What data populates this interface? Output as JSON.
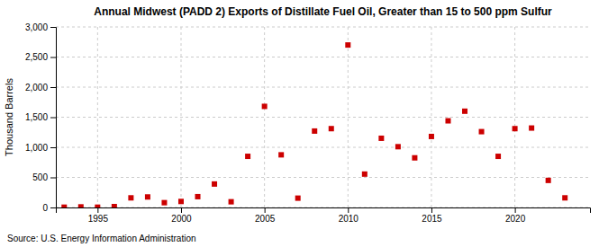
{
  "chart_data": {
    "type": "scatter",
    "title": "Annual Midwest (PADD 2) Exports of Distillate Fuel Oil, Greater than 15 to 500 ppm Sulfur",
    "ylabel": "Thousand Barrels",
    "source": "Source: U.S. Energy Information Administration",
    "x": [
      1993,
      1994,
      1995,
      1996,
      1997,
      1998,
      1999,
      2000,
      2001,
      2002,
      2003,
      2004,
      2005,
      2006,
      2007,
      2008,
      2009,
      2010,
      2011,
      2012,
      2013,
      2014,
      2015,
      2016,
      2017,
      2018,
      2019,
      2020,
      2021,
      2022,
      2023
    ],
    "values": [
      5,
      10,
      5,
      15,
      160,
      175,
      80,
      100,
      180,
      390,
      95,
      850,
      1680,
      875,
      155,
      1270,
      1310,
      2700,
      555,
      1150,
      1010,
      825,
      1180,
      1440,
      1600,
      1260,
      850,
      1310,
      1320,
      450,
      160
    ],
    "color": "#cc0000",
    "marker": "square",
    "xlim": [
      1992.5,
      2024.5
    ],
    "ylim": [
      0,
      3000
    ],
    "xticks": [
      1995,
      2000,
      2005,
      2010,
      2015,
      2020
    ],
    "yticks": [
      0,
      500,
      {
        "value": 1000,
        "label": "1,000"
      },
      {
        "value": 1500,
        "label": "1,500"
      },
      {
        "value": 2000,
        "label": "2,000"
      },
      {
        "value": 2500,
        "label": "2,500"
      },
      {
        "value": 3000,
        "label": "3,000"
      }
    ],
    "grid": true
  }
}
